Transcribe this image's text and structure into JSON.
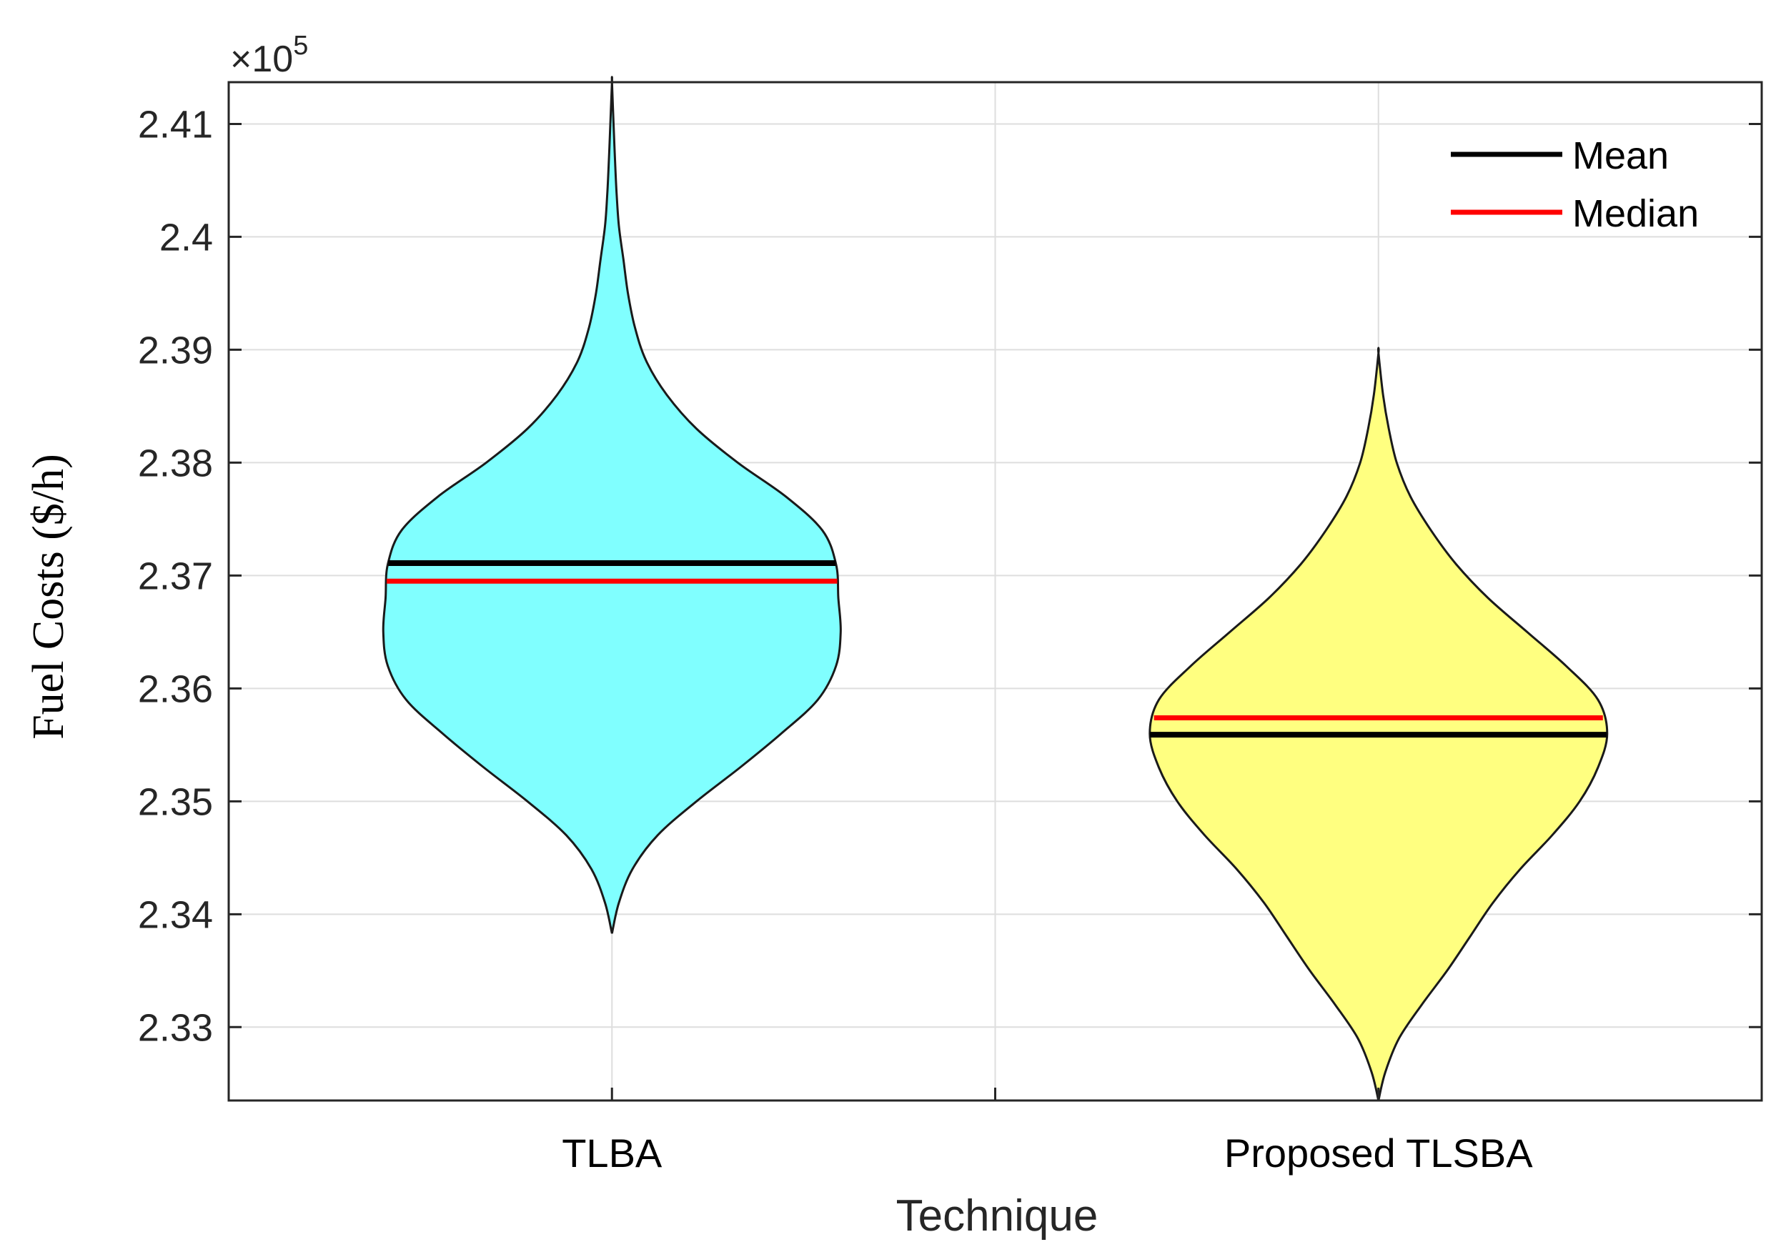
{
  "chart_data": {
    "type": "violin",
    "xlabel": "Technique",
    "ylabel": "Fuel Costs ($/h)",
    "y_multiplier": "×10",
    "y_multiplier_exp": "5",
    "ylim": [
      2.3235,
      2.4137
    ],
    "yticks": [
      "2.33",
      "2.34",
      "2.35",
      "2.36",
      "2.37",
      "2.38",
      "2.39",
      "2.4",
      "2.41"
    ],
    "ytick_values": [
      2.33,
      2.34,
      2.35,
      2.36,
      2.37,
      2.38,
      2.39,
      2.4,
      2.41
    ],
    "categories": [
      "TLBA",
      "Proposed TLSBA"
    ],
    "grid": true,
    "legend": {
      "position": "top-right",
      "entries": [
        {
          "label": "Mean",
          "color": "#000000"
        },
        {
          "label": "Median",
          "color": "#ff0000"
        }
      ]
    },
    "series": [
      {
        "category": "TLBA",
        "fill": "#80ffff",
        "min": 2.3383,
        "max": 2.4137,
        "mean": 2.3711,
        "median": 2.3695,
        "density": [
          [
            2.3383,
            0.0
          ],
          [
            2.341,
            0.03
          ],
          [
            2.344,
            0.09
          ],
          [
            2.347,
            0.2
          ],
          [
            2.35,
            0.37
          ],
          [
            2.353,
            0.56
          ],
          [
            2.356,
            0.74
          ],
          [
            2.359,
            0.9
          ],
          [
            2.362,
            0.98
          ],
          [
            2.365,
            1.0
          ],
          [
            2.368,
            0.99
          ],
          [
            2.371,
            0.98
          ],
          [
            2.374,
            0.92
          ],
          [
            2.377,
            0.76
          ],
          [
            2.38,
            0.55
          ],
          [
            2.383,
            0.37
          ],
          [
            2.386,
            0.24
          ],
          [
            2.389,
            0.15
          ],
          [
            2.392,
            0.1
          ],
          [
            2.395,
            0.07
          ],
          [
            2.398,
            0.05
          ],
          [
            2.401,
            0.03
          ],
          [
            2.404,
            0.02
          ],
          [
            2.407,
            0.013
          ],
          [
            2.41,
            0.007
          ],
          [
            2.4137,
            0.0
          ]
        ]
      },
      {
        "category": "Proposed TLSBA",
        "fill": "#ffff80",
        "min": 2.3235,
        "max": 2.3897,
        "mean": 2.3559,
        "median": 2.3574,
        "density": [
          [
            2.3235,
            0.0
          ],
          [
            2.326,
            0.03
          ],
          [
            2.329,
            0.09
          ],
          [
            2.332,
            0.19
          ],
          [
            2.335,
            0.3
          ],
          [
            2.338,
            0.4
          ],
          [
            2.341,
            0.5
          ],
          [
            2.344,
            0.62
          ],
          [
            2.347,
            0.76
          ],
          [
            2.35,
            0.88
          ],
          [
            2.353,
            0.96
          ],
          [
            2.356,
            1.0
          ],
          [
            2.359,
            0.96
          ],
          [
            2.362,
            0.82
          ],
          [
            2.365,
            0.65
          ],
          [
            2.368,
            0.48
          ],
          [
            2.371,
            0.34
          ],
          [
            2.374,
            0.23
          ],
          [
            2.377,
            0.14
          ],
          [
            2.38,
            0.08
          ],
          [
            2.383,
            0.045
          ],
          [
            2.386,
            0.02
          ],
          [
            2.3897,
            0.0
          ]
        ]
      }
    ]
  }
}
